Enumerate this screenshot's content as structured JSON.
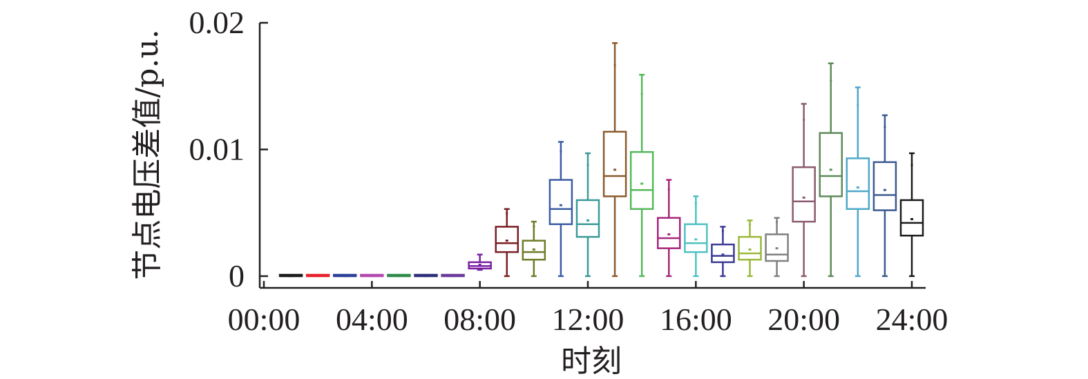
{
  "chart_data": {
    "type": "box",
    "ylabel": "节点电压差值/p.u.",
    "xlabel": "时刻",
    "xlim": [
      0,
      24
    ],
    "ylim": [
      0,
      0.02
    ],
    "x_ticks": [
      0,
      4,
      8,
      12,
      16,
      20,
      24
    ],
    "x_tick_labels": [
      "00:00",
      "04:00",
      "08:00",
      "12:00",
      "16:00",
      "20:00",
      "24:00"
    ],
    "y_ticks": [
      0,
      0.01,
      0.02
    ],
    "y_tick_labels": [
      "0",
      "0.01",
      "0.02"
    ],
    "boxes": [
      {
        "hour": 1,
        "min": 0,
        "q1": 0,
        "median": 0,
        "q3": 5e-05,
        "max": 5e-05,
        "mean": 0,
        "color": "#1a1a1a"
      },
      {
        "hour": 2,
        "min": 0,
        "q1": 0,
        "median": 0,
        "q3": 5e-05,
        "max": 5e-05,
        "mean": 0,
        "color": "#e8202a"
      },
      {
        "hour": 3,
        "min": 0,
        "q1": 0,
        "median": 0,
        "q3": 5e-05,
        "max": 5e-05,
        "mean": 0,
        "color": "#2a3f9a"
      },
      {
        "hour": 4,
        "min": 0,
        "q1": 0,
        "median": 0,
        "q3": 5e-05,
        "max": 5e-05,
        "mean": 0,
        "color": "#b349b0"
      },
      {
        "hour": 5,
        "min": 0,
        "q1": 0,
        "median": 0,
        "q3": 5e-05,
        "max": 5e-05,
        "mean": 0,
        "color": "#2f8a4a"
      },
      {
        "hour": 6,
        "min": 0,
        "q1": 0,
        "median": 0,
        "q3": 5e-05,
        "max": 5e-05,
        "mean": 0,
        "color": "#2b2f7a"
      },
      {
        "hour": 7,
        "min": 0,
        "q1": 0,
        "median": 0,
        "q3": 5e-05,
        "max": 5e-05,
        "mean": 0,
        "color": "#6a3a9a"
      },
      {
        "hour": 8,
        "min": 0.0005,
        "q1": 0.0006,
        "median": 0.0008,
        "q3": 0.0011,
        "max": 0.0017,
        "mean": 0.0009,
        "color": "#7b1fa2"
      },
      {
        "hour": 9,
        "min": 0,
        "q1": 0.0019,
        "median": 0.0026,
        "q3": 0.0039,
        "max": 0.0053,
        "mean": 0.0028,
        "color": "#7a1e24"
      },
      {
        "hour": 10,
        "min": 0,
        "q1": 0.0013,
        "median": 0.0019,
        "q3": 0.0028,
        "max": 0.0043,
        "mean": 0.0021,
        "color": "#6f7a28"
      },
      {
        "hour": 11,
        "min": 0,
        "q1": 0.0041,
        "median": 0.0053,
        "q3": 0.0076,
        "max": 0.0106,
        "mean": 0.0056,
        "color": "#3b5ba3"
      },
      {
        "hour": 12,
        "min": 0,
        "q1": 0.0031,
        "median": 0.0041,
        "q3": 0.006,
        "max": 0.0097,
        "mean": 0.0044,
        "color": "#3a9a96"
      },
      {
        "hour": 13,
        "min": 0,
        "q1": 0.0063,
        "median": 0.0079,
        "q3": 0.0114,
        "max": 0.0184,
        "mean": 0.0084,
        "color": "#8a5a2b"
      },
      {
        "hour": 14,
        "min": 0,
        "q1": 0.0053,
        "median": 0.0068,
        "q3": 0.0098,
        "max": 0.0159,
        "mean": 0.0073,
        "color": "#55b85a"
      },
      {
        "hour": 15,
        "min": 0,
        "q1": 0.0022,
        "median": 0.003,
        "q3": 0.0046,
        "max": 0.0076,
        "mean": 0.0033,
        "color": "#a6277a"
      },
      {
        "hour": 16,
        "min": 0,
        "q1": 0.0019,
        "median": 0.0026,
        "q3": 0.0041,
        "max": 0.0063,
        "mean": 0.0029,
        "color": "#4fc1c1"
      },
      {
        "hour": 17,
        "min": 0,
        "q1": 0.0011,
        "median": 0.0016,
        "q3": 0.0025,
        "max": 0.0039,
        "mean": 0.0017,
        "color": "#3a3a94"
      },
      {
        "hour": 18,
        "min": 0,
        "q1": 0.0013,
        "median": 0.0018,
        "q3": 0.0031,
        "max": 0.0044,
        "mean": 0.0021,
        "color": "#9ab83a"
      },
      {
        "hour": 19,
        "min": 0,
        "q1": 0.0012,
        "median": 0.0017,
        "q3": 0.0033,
        "max": 0.0046,
        "mean": 0.0022,
        "color": "#7f7f7f"
      },
      {
        "hour": 20,
        "min": 0,
        "q1": 0.0043,
        "median": 0.0059,
        "q3": 0.0086,
        "max": 0.0136,
        "mean": 0.0062,
        "color": "#8a5a6e"
      },
      {
        "hour": 21,
        "min": 0,
        "q1": 0.0063,
        "median": 0.0079,
        "q3": 0.0113,
        "max": 0.0168,
        "mean": 0.0084,
        "color": "#5e8a5a"
      },
      {
        "hour": 22,
        "min": 0,
        "q1": 0.0053,
        "median": 0.0067,
        "q3": 0.0093,
        "max": 0.0149,
        "mean": 0.007,
        "color": "#4ea8c9"
      },
      {
        "hour": 23,
        "min": 0,
        "q1": 0.0052,
        "median": 0.0064,
        "q3": 0.009,
        "max": 0.0127,
        "mean": 0.0068,
        "color": "#3a5a8f"
      },
      {
        "hour": 24,
        "min": 0,
        "q1": 0.0032,
        "median": 0.0042,
        "q3": 0.006,
        "max": 0.0097,
        "mean": 0.0045,
        "color": "#1a1a1a"
      }
    ]
  }
}
